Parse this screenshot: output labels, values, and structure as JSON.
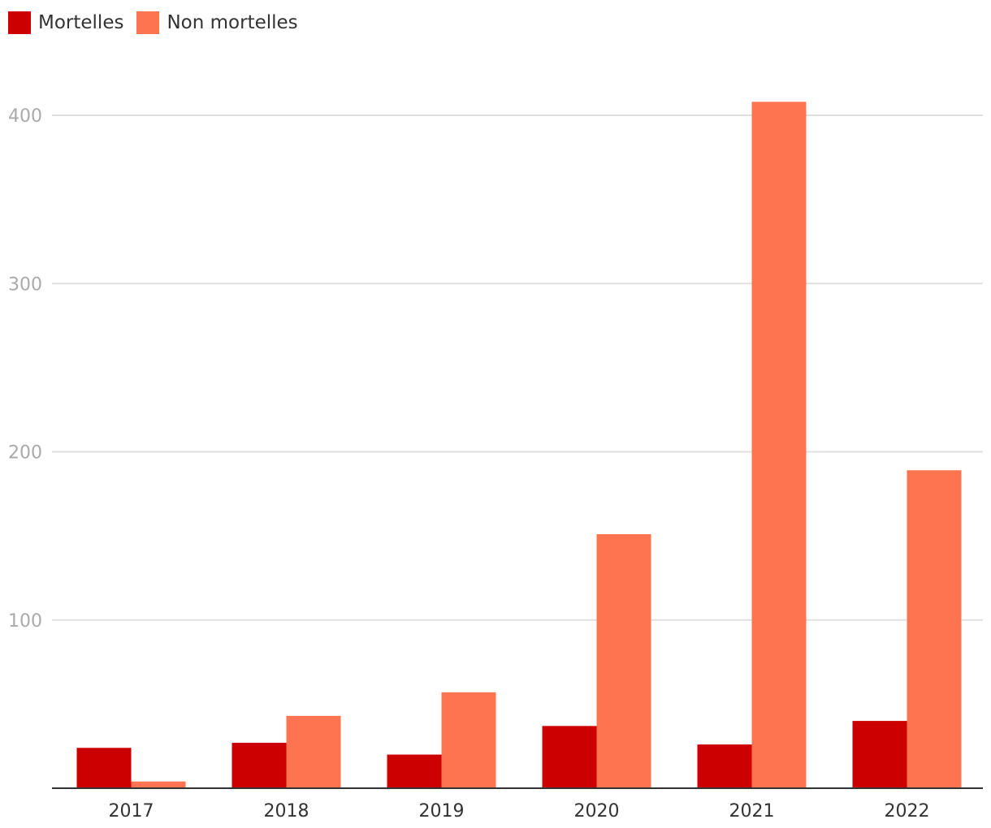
{
  "chart_data": {
    "type": "bar",
    "categories": [
      "2017",
      "2018",
      "2019",
      "2020",
      "2021",
      "2022"
    ],
    "series": [
      {
        "name": "Mortelles",
        "color": "#cc0000",
        "values": [
          24,
          27,
          20,
          37,
          26,
          40
        ]
      },
      {
        "name": "Non mortelles",
        "color": "#ff7450",
        "values": [
          4,
          43,
          57,
          151,
          408,
          189
        ]
      }
    ],
    "yticks": [
      100,
      200,
      300,
      400
    ],
    "ylim": [
      0,
      420
    ],
    "grid": true,
    "legend_position": "top-left",
    "title": "",
    "xlabel": "",
    "ylabel": ""
  }
}
